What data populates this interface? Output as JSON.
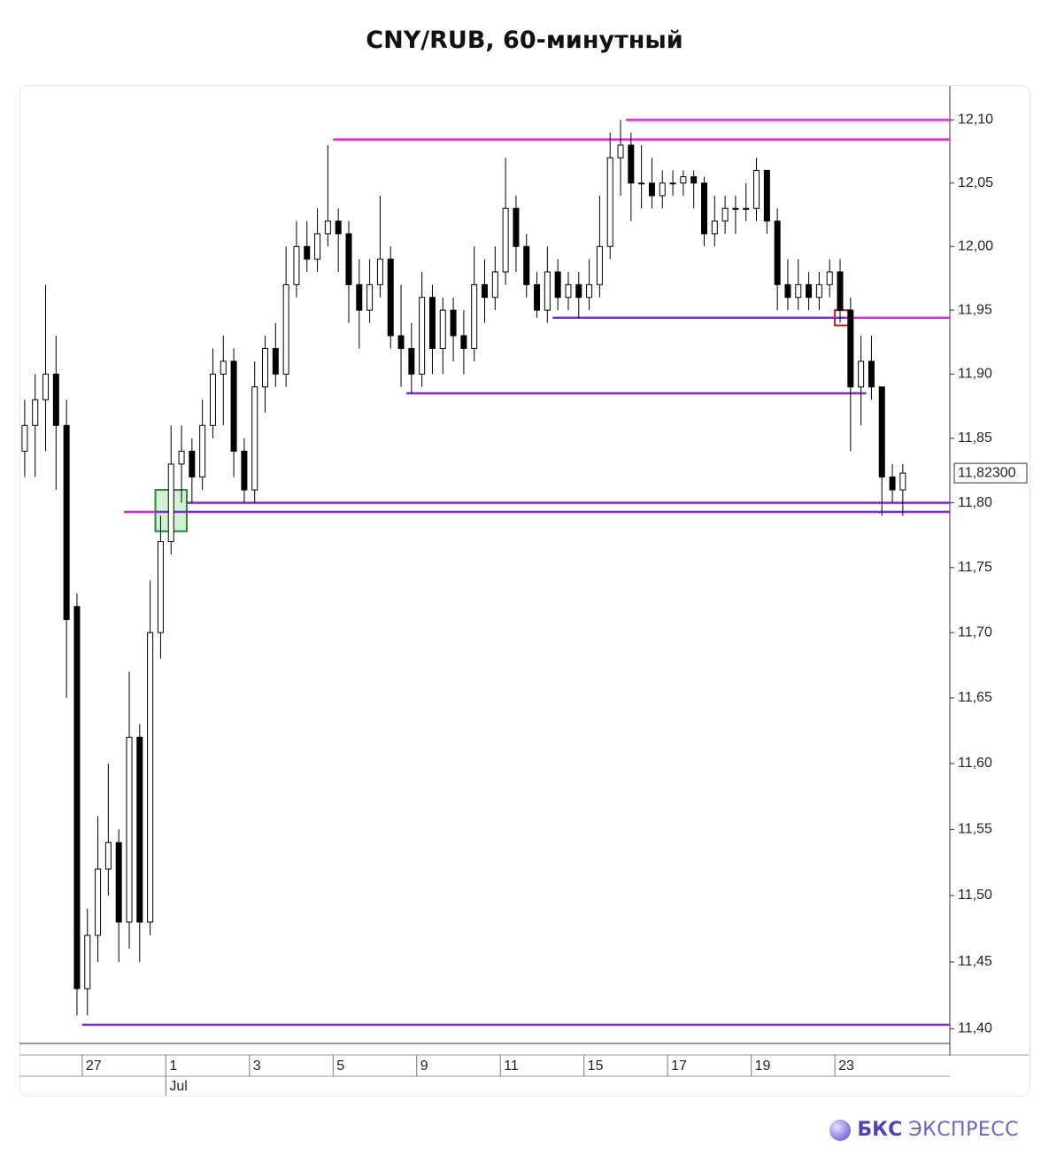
{
  "chart_data": {
    "type": "candlestick",
    "title": "CNY/RUB, 60-минутный",
    "log_scale": true,
    "ylim": [
      11.389,
      12.127
    ],
    "yticks": [
      {
        "value": 12.1,
        "label": "12,10"
      },
      {
        "value": 12.05,
        "label": "12,05"
      },
      {
        "value": 12.0,
        "label": "12,00"
      },
      {
        "value": 11.95,
        "label": "11,95"
      },
      {
        "value": 11.9,
        "label": "11,90"
      },
      {
        "value": 11.85,
        "label": "11,85"
      },
      {
        "value": 11.8,
        "label": "11,80"
      },
      {
        "value": 11.75,
        "label": "11,75"
      },
      {
        "value": 11.7,
        "label": "11,70"
      },
      {
        "value": 11.65,
        "label": "11,65"
      },
      {
        "value": 11.6,
        "label": "11,60"
      },
      {
        "value": 11.55,
        "label": "11,55"
      },
      {
        "value": 11.5,
        "label": "11,50"
      },
      {
        "value": 11.45,
        "label": "11,45"
      },
      {
        "value": 11.4,
        "label": "11,40"
      }
    ],
    "xlim": [
      0,
      89
    ],
    "xticks": [
      {
        "value": 6,
        "label": "27"
      },
      {
        "value": 14,
        "label": "1"
      },
      {
        "value": 22,
        "label": "3"
      },
      {
        "value": 30,
        "label": "5"
      },
      {
        "value": 38,
        "label": "9"
      },
      {
        "value": 46,
        "label": "11"
      },
      {
        "value": 54,
        "label": "15"
      },
      {
        "value": 62,
        "label": "17"
      },
      {
        "value": 70,
        "label": "19"
      },
      {
        "value": 78,
        "label": "23"
      }
    ],
    "month_ticks": [
      {
        "value": 14,
        "label": "Jul"
      }
    ],
    "up_color": "#ffffff",
    "down_color": "#000000",
    "open": [
      11.84,
      11.86,
      11.88,
      11.9,
      11.86,
      11.72,
      11.43,
      11.47,
      11.52,
      11.54,
      11.48,
      11.62,
      11.48,
      11.7,
      11.77,
      11.83,
      11.84,
      11.82,
      11.86,
      11.9,
      11.91,
      11.84,
      11.81,
      11.89,
      11.92,
      11.9,
      11.97,
      12.0,
      11.99,
      12.01,
      12.02,
      12.01,
      11.97,
      11.95,
      11.97,
      11.99,
      11.93,
      11.92,
      11.9,
      11.96,
      11.92,
      11.95,
      11.93,
      11.92,
      11.97,
      11.96,
      11.98,
      12.03,
      12.0,
      11.97,
      11.95,
      11.98,
      11.96,
      11.97,
      11.96,
      11.97,
      12.0,
      12.07,
      12.08,
      12.05,
      12.05,
      12.04,
      12.05,
      12.05,
      12.055,
      12.05,
      12.01,
      12.02,
      12.03,
      12.03,
      12.03,
      12.06,
      12.02,
      11.97,
      11.96,
      11.97,
      11.96,
      11.97,
      11.98,
      11.95,
      11.89,
      11.91,
      11.89,
      11.82,
      11.81
    ],
    "high": [
      11.88,
      11.9,
      11.97,
      11.93,
      11.88,
      11.73,
      11.49,
      11.56,
      11.6,
      11.55,
      11.67,
      11.63,
      11.74,
      11.79,
      11.86,
      11.86,
      11.85,
      11.88,
      11.92,
      11.93,
      11.92,
      11.85,
      11.91,
      11.93,
      11.94,
      12.0,
      12.02,
      12.02,
      12.03,
      12.08,
      12.03,
      12.02,
      11.99,
      11.99,
      12.04,
      12.0,
      11.97,
      11.94,
      11.98,
      11.97,
      11.96,
      11.96,
      11.95,
      12.0,
      11.99,
      12.0,
      12.07,
      12.04,
      12.01,
      11.98,
      12.0,
      11.99,
      11.98,
      11.98,
      11.99,
      12.04,
      12.09,
      12.1,
      12.09,
      12.08,
      12.07,
      12.06,
      12.06,
      12.06,
      12.06,
      12.055,
      12.04,
      12.04,
      12.04,
      12.05,
      12.07,
      12.06,
      12.03,
      11.99,
      11.99,
      11.98,
      11.98,
      11.99,
      11.99,
      11.96,
      11.93,
      11.93,
      11.89,
      11.83,
      11.83
    ],
    "low": [
      11.82,
      11.82,
      11.84,
      11.81,
      11.65,
      11.41,
      11.41,
      11.45,
      11.5,
      11.45,
      11.46,
      11.45,
      11.47,
      11.68,
      11.76,
      11.8,
      11.8,
      11.81,
      11.85,
      11.86,
      11.82,
      11.8,
      11.8,
      11.87,
      11.89,
      11.89,
      11.96,
      11.98,
      11.98,
      12.0,
      11.98,
      11.94,
      11.92,
      11.94,
      11.96,
      11.92,
      11.89,
      11.885,
      11.89,
      11.9,
      11.9,
      11.91,
      11.9,
      11.91,
      11.94,
      11.95,
      11.97,
      11.98,
      11.96,
      11.944,
      11.94,
      11.95,
      11.95,
      11.944,
      11.95,
      11.96,
      11.99,
      12.04,
      12.02,
      12.03,
      12.03,
      12.03,
      12.04,
      12.04,
      12.03,
      12.0,
      12.0,
      12.01,
      12.01,
      12.02,
      12.02,
      12.01,
      11.95,
      11.95,
      11.95,
      11.95,
      11.95,
      11.96,
      11.94,
      11.84,
      11.86,
      11.88,
      11.79,
      11.8,
      11.79
    ],
    "close": [
      11.86,
      11.88,
      11.9,
      11.86,
      11.71,
      11.43,
      11.47,
      11.52,
      11.54,
      11.48,
      11.62,
      11.48,
      11.7,
      11.77,
      11.83,
      11.84,
      11.82,
      11.86,
      11.9,
      11.91,
      11.84,
      11.81,
      11.89,
      11.92,
      11.9,
      11.97,
      12.0,
      11.99,
      12.01,
      12.02,
      12.01,
      11.97,
      11.95,
      11.97,
      11.99,
      11.93,
      11.92,
      11.9,
      11.96,
      11.92,
      11.95,
      11.93,
      11.92,
      11.97,
      11.96,
      11.98,
      12.03,
      12.0,
      11.97,
      11.95,
      11.98,
      11.96,
      11.97,
      11.96,
      11.97,
      12.0,
      12.07,
      12.08,
      12.05,
      12.05,
      12.04,
      12.05,
      12.05,
      12.055,
      12.05,
      12.01,
      12.02,
      12.03,
      12.03,
      12.03,
      12.06,
      12.02,
      11.97,
      11.96,
      11.97,
      11.96,
      11.97,
      11.98,
      11.95,
      11.89,
      11.91,
      11.89,
      11.82,
      11.81,
      11.823
    ],
    "levels": [
      {
        "value": 12.1,
        "from": 58,
        "color": "#e026e0"
      },
      {
        "value": 12.0845,
        "from": 30,
        "color": "#e026e0"
      },
      {
        "value": 11.944,
        "from": 51,
        "color": "#7b2be2"
      },
      {
        "value": 11.944,
        "from": 79,
        "color": "#e026e0"
      },
      {
        "value": 11.885,
        "from": 37,
        "to": 81,
        "color": "#7b2be2"
      },
      {
        "value": 11.8,
        "from": 16,
        "color": "#7b2be2"
      },
      {
        "value": 11.793,
        "from": 10,
        "to": 13,
        "color": "#e026e0"
      },
      {
        "value": 11.793,
        "from": 13,
        "color": "#7b2be2"
      },
      {
        "value": 11.403,
        "from": 6,
        "color": "#7b2be2"
      }
    ],
    "boxes": [
      {
        "from": 13,
        "to": 16,
        "top": 11.81,
        "bottom": 11.778,
        "color": "#1e8a3a",
        "fill": "#c8f0c8"
      },
      {
        "from": 78,
        "to": 79.5,
        "top": 11.95,
        "bottom": 11.938,
        "color": "#d11a1a",
        "fill": "none"
      }
    ],
    "current_price": {
      "value": 11.823,
      "label": "11,82300"
    }
  },
  "footer": {
    "brand": "БКС",
    "product": "ЭКСПРЕСС"
  }
}
